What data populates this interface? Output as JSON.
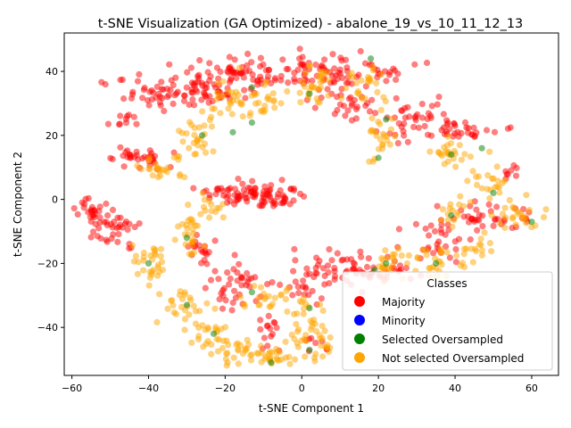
{
  "chart_data": {
    "type": "scatter",
    "title": "t-SNE Visualization (GA Optimized) - abalone_19_vs_10_11_12_13",
    "xlabel": "t-SNE Component 1",
    "ylabel": "t-SNE Component 2",
    "xlim": [
      -62,
      67
    ],
    "ylim": [
      -55,
      52
    ],
    "x_ticks": [
      -60,
      -40,
      -20,
      0,
      20,
      40,
      60
    ],
    "y_ticks": [
      -40,
      -20,
      0,
      20,
      40
    ],
    "x_tick_labels": [
      "−60",
      "−40",
      "−20",
      "0",
      "20",
      "40",
      "60"
    ],
    "y_tick_labels": [
      "−40",
      "−20",
      "0",
      "20",
      "40"
    ],
    "grid": false,
    "legend": {
      "title": "Classes",
      "placement": "lower-right",
      "entries": [
        "Majority",
        "Minority",
        "Selected Oversampled",
        "Not selected Oversampled"
      ]
    },
    "marker_alpha": 0.5,
    "series": [
      {
        "name": "Majority",
        "color": "#ff0000",
        "clusters": [
          {
            "center": [
              -30,
              34
            ],
            "sx": 9,
            "sy": 3,
            "n": 90
          },
          {
            "center": [
              -16,
              39
            ],
            "sx": 6,
            "sy": 2.5,
            "n": 60
          },
          {
            "center": [
              8,
              40
            ],
            "sx": 9,
            "sy": 3,
            "n": 80
          },
          {
            "center": [
              12,
              30
            ],
            "sx": 4,
            "sy": 3,
            "n": 30
          },
          {
            "center": [
              -46,
              25
            ],
            "sx": 1.5,
            "sy": 1.5,
            "n": 10
          },
          {
            "center": [
              -42,
              13
            ],
            "sx": 4,
            "sy": 2,
            "n": 35
          },
          {
            "center": [
              -55,
              -3
            ],
            "sx": 2,
            "sy": 2.5,
            "n": 25
          },
          {
            "center": [
              -49,
              -9
            ],
            "sx": 3,
            "sy": 3,
            "n": 35
          },
          {
            "center": [
              -14,
              2
            ],
            "sx": 6,
            "sy": 1.5,
            "n": 70
          },
          {
            "center": [
              -6,
              0
            ],
            "sx": 3,
            "sy": 1.5,
            "n": 25
          },
          {
            "center": [
              28,
              25
            ],
            "sx": 6,
            "sy": 3,
            "n": 40
          },
          {
            "center": [
              42,
              21
            ],
            "sx": 5,
            "sy": 1.5,
            "n": 30
          },
          {
            "center": [
              54,
              8
            ],
            "sx": 1.5,
            "sy": 1.5,
            "n": 8
          },
          {
            "center": [
              43,
              -6
            ],
            "sx": 5,
            "sy": 3,
            "n": 35
          },
          {
            "center": [
              57,
              -5
            ],
            "sx": 2,
            "sy": 2,
            "n": 10
          },
          {
            "center": [
              -26,
              -16
            ],
            "sx": 2,
            "sy": 3,
            "n": 20
          },
          {
            "center": [
              -18,
              -27
            ],
            "sx": 4,
            "sy": 4,
            "n": 40
          },
          {
            "center": [
              2,
              -27
            ],
            "sx": 3,
            "sy": 3,
            "n": 20
          },
          {
            "center": [
              11,
              -22
            ],
            "sx": 5,
            "sy": 3,
            "n": 45
          },
          {
            "center": [
              22,
              -22
            ],
            "sx": 5,
            "sy": 2,
            "n": 25
          },
          {
            "center": [
              35,
              -13
            ],
            "sx": 4,
            "sy": 3,
            "n": 25
          },
          {
            "center": [
              -9,
              -41
            ],
            "sx": 2,
            "sy": 4,
            "n": 15
          },
          {
            "center": [
              4,
              -45
            ],
            "sx": 2,
            "sy": 2,
            "n": 8
          }
        ]
      },
      {
        "name": "Minority",
        "color": "#0000ff",
        "clusters": []
      },
      {
        "name": "Selected Oversampled",
        "color": "#008000",
        "points": [
          [
            18,
            44
          ],
          [
            2,
            33
          ],
          [
            -13,
            35
          ],
          [
            -18,
            21
          ],
          [
            -13,
            24
          ],
          [
            -26,
            20
          ],
          [
            22,
            25
          ],
          [
            20,
            13
          ],
          [
            39,
            14
          ],
          [
            47,
            16
          ],
          [
            50,
            2
          ],
          [
            -30,
            -12
          ],
          [
            -40,
            -20
          ],
          [
            -30,
            -33
          ],
          [
            -23,
            -42
          ],
          [
            -13,
            -29
          ],
          [
            -8,
            -51
          ],
          [
            2,
            -34
          ],
          [
            2,
            -47
          ],
          [
            22,
            -20
          ],
          [
            35,
            -20
          ],
          [
            39,
            -5
          ],
          [
            60,
            -7
          ],
          [
            19,
            -22
          ]
        ]
      },
      {
        "name": "Not selected Oversampled",
        "color": "#ffa500",
        "clusters": [
          {
            "center": [
              -36,
              10
            ],
            "sx": 3,
            "sy": 2,
            "n": 25
          },
          {
            "center": [
              -28,
              18
            ],
            "sx": 2,
            "sy": 3,
            "n": 20
          },
          {
            "center": [
              -20,
              30
            ],
            "sx": 4,
            "sy": 4,
            "n": 35
          },
          {
            "center": [
              -10,
              30
            ],
            "sx": 3,
            "sy": 3,
            "n": 20
          },
          {
            "center": [
              2,
              36
            ],
            "sx": 3,
            "sy": 3,
            "n": 30
          },
          {
            "center": [
              16,
              36
            ],
            "sx": 3,
            "sy": 3,
            "n": 25
          },
          {
            "center": [
              20,
              20
            ],
            "sx": 2,
            "sy": 5,
            "n": 25
          },
          {
            "center": [
              38,
              15
            ],
            "sx": 3,
            "sy": 2,
            "n": 25
          },
          {
            "center": [
              49,
              5
            ],
            "sx": 2,
            "sy": 3,
            "n": 20
          },
          {
            "center": [
              57,
              -5
            ],
            "sx": 3,
            "sy": 3,
            "n": 25
          },
          {
            "center": [
              40,
              -2
            ],
            "sx": 2,
            "sy": 3,
            "n": 15
          },
          {
            "center": [
              -24,
              -2
            ],
            "sx": 2,
            "sy": 2,
            "n": 15
          },
          {
            "center": [
              -29,
              -10
            ],
            "sx": 2,
            "sy": 4,
            "n": 25
          },
          {
            "center": [
              -40,
              -20
            ],
            "sx": 3,
            "sy": 3,
            "n": 30
          },
          {
            "center": [
              -31,
              -33
            ],
            "sx": 3,
            "sy": 3,
            "n": 25
          },
          {
            "center": [
              -24,
              -42
            ],
            "sx": 3,
            "sy": 3,
            "n": 25
          },
          {
            "center": [
              -15,
              -48
            ],
            "sx": 4,
            "sy": 2,
            "n": 30
          },
          {
            "center": [
              -7,
              -50
            ],
            "sx": 3,
            "sy": 2,
            "n": 20
          },
          {
            "center": [
              -8,
              -32
            ],
            "sx": 4,
            "sy": 2,
            "n": 25
          },
          {
            "center": [
              1,
              -40
            ],
            "sx": 3,
            "sy": 5,
            "n": 30
          },
          {
            "center": [
              6,
              -46
            ],
            "sx": 2,
            "sy": 3,
            "n": 15
          },
          {
            "center": [
              22,
              -20
            ],
            "sx": 2,
            "sy": 3,
            "n": 20
          },
          {
            "center": [
              34,
              -20
            ],
            "sx": 4,
            "sy": 3,
            "n": 30
          },
          {
            "center": [
              46,
              -15
            ],
            "sx": 2,
            "sy": 3,
            "n": 15
          }
        ]
      }
    ]
  }
}
